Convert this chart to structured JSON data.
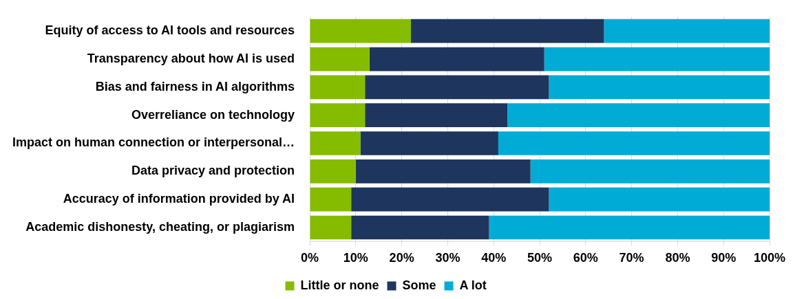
{
  "chart_data": {
    "type": "bar",
    "orientation": "horizontal",
    "stacked": true,
    "categories": [
      "Equity of access to AI tools and resources",
      "Transparency about how AI is used",
      "Bias and fairness in AI algorithms",
      "Overreliance on technology",
      "Impact on human connection or interpersonal…",
      "Data privacy and protection",
      "Accuracy of information provided by AI",
      "Academic dishonesty, cheating, or plagiarism"
    ],
    "series": [
      {
        "name": "Little or none",
        "color": "#86bc00",
        "values": [
          22,
          13,
          12,
          12,
          11,
          10,
          9,
          9
        ]
      },
      {
        "name": "Some",
        "color": "#1e365e",
        "values": [
          42,
          38,
          40,
          31,
          30,
          38,
          43,
          30
        ]
      },
      {
        "name": "A lot",
        "color": "#00acd6",
        "values": [
          36,
          49,
          48,
          57,
          59,
          52,
          48,
          61
        ]
      }
    ],
    "xlim": [
      0,
      100
    ],
    "xticks": [
      {
        "value": 0,
        "label": "0%"
      },
      {
        "value": 10,
        "label": "10%"
      },
      {
        "value": 20,
        "label": "20%"
      },
      {
        "value": 30,
        "label": "30%"
      },
      {
        "value": 40,
        "label": "40%"
      },
      {
        "value": 50,
        "label": "50%"
      },
      {
        "value": 60,
        "label": "60%"
      },
      {
        "value": 70,
        "label": "70%"
      },
      {
        "value": 80,
        "label": "80%"
      },
      {
        "value": 90,
        "label": "90%"
      },
      {
        "value": 100,
        "label": "100%"
      }
    ],
    "grid": "x",
    "legend": "bottom"
  }
}
